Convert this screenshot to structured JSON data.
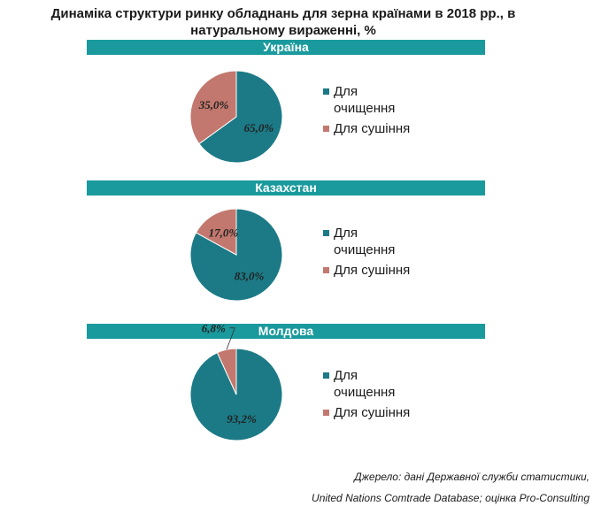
{
  "title": "Динаміка структури ринку обладнань для зерна країнами в 2018 рр., в натуральному вираженні, %",
  "colors": {
    "band": "#1a9a9d",
    "cleaning": "#1b7a86",
    "drying": "#c2786e"
  },
  "legend": {
    "cleaning": "Для очищення",
    "drying": "Для сушіння"
  },
  "chart_data": [
    {
      "type": "pie",
      "title": "Україна",
      "categories": [
        "Для очищення",
        "Для сушіння"
      ],
      "values": [
        65.0,
        35.0
      ],
      "labels": [
        "65,0%",
        "35,0%"
      ]
    },
    {
      "type": "pie",
      "title": "Казахстан",
      "categories": [
        "Для очищення",
        "Для сушіння"
      ],
      "values": [
        83.0,
        17.0
      ],
      "labels": [
        "83,0%",
        "17,0%"
      ]
    },
    {
      "type": "pie",
      "title": "Молдова",
      "categories": [
        "Для очищення",
        "Для сушіння"
      ],
      "values": [
        93.2,
        6.8
      ],
      "labels": [
        "93,2%",
        "6,8%"
      ]
    }
  ],
  "source": {
    "line1": "Джерело: дані Державної служби статистики,",
    "line2": "United Nations Comtrade Database; оцінка Pro-Consulting"
  }
}
